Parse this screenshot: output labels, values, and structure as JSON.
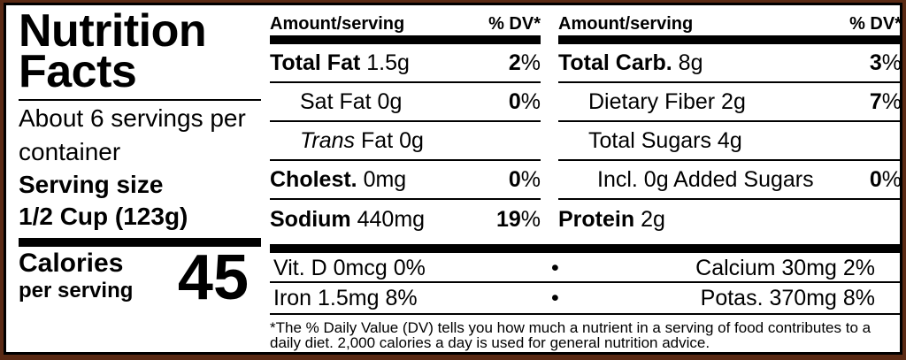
{
  "title": "Nutrition Facts",
  "servings_per_container": "About 6 servings per container",
  "serving_size_label": "Serving size",
  "serving_size_value": "1/2 Cup (123g)",
  "calories_label": "Calories",
  "calories_sub": "per serving",
  "calories_value": "45",
  "header": {
    "amount": "Amount/serving",
    "dv": "% DV*"
  },
  "left_nutrients": [
    {
      "name": "Total Fat",
      "amount": "1.5g",
      "dv": "2"
    },
    {
      "name": "Sat Fat",
      "amount": "0g",
      "dv": "0"
    },
    {
      "name": "Trans",
      "amount": "Fat 0g",
      "dv": ""
    },
    {
      "name": "Cholest.",
      "amount": "0mg",
      "dv": "0"
    },
    {
      "name": "Sodium",
      "amount": "440mg",
      "dv": "19"
    }
  ],
  "right_nutrients": [
    {
      "name": "Total Carb.",
      "amount": "8g",
      "dv": "3"
    },
    {
      "name": "Dietary Fiber",
      "amount": "2g",
      "dv": "7"
    },
    {
      "name": "Total Sugars",
      "amount": "4g",
      "dv": ""
    },
    {
      "name": "Incl. 0g Added Sugars",
      "amount": "",
      "dv": "0"
    },
    {
      "name": "Protein",
      "amount": "2g",
      "dv": ""
    }
  ],
  "percent_sign": "%",
  "vitamins": [
    {
      "left": "Vit. D 0mcg 0%",
      "right": "Calcium 30mg 2%"
    },
    {
      "left": "Iron 1.5mg 8%",
      "right": "Potas. 370mg 8%"
    }
  ],
  "bullet": "•",
  "footnote": "*The % Daily Value (DV) tells you how much a nutrient in a serving of food contributes to a daily diet. 2,000 calories a day is used for general nutrition advice."
}
